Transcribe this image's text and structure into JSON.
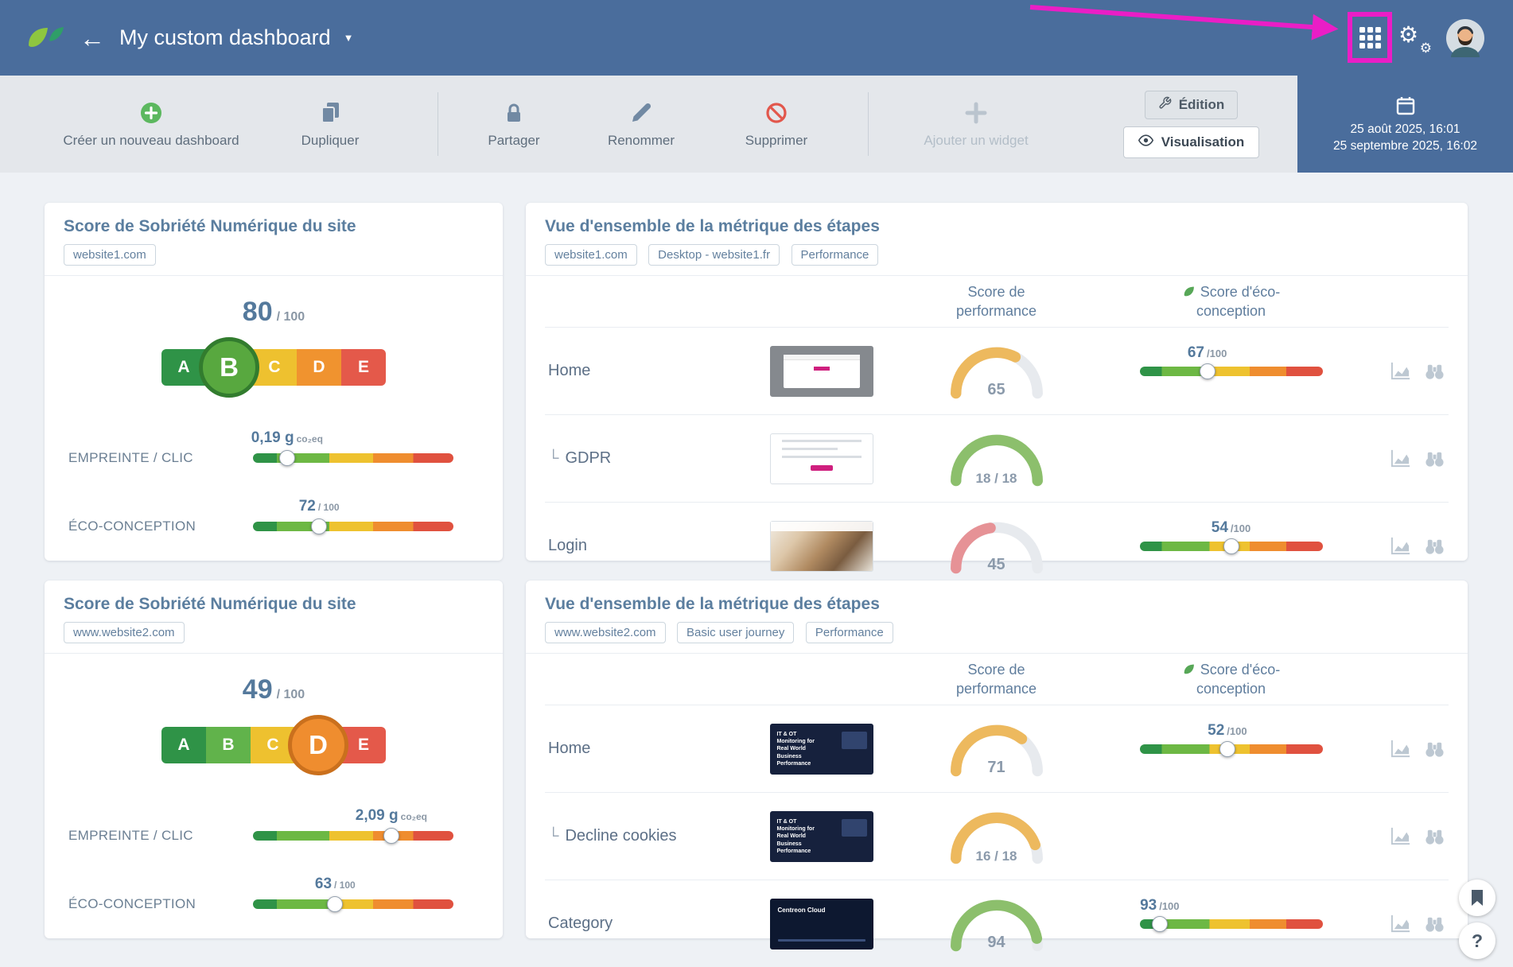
{
  "icons": {
    "back": "←",
    "caret": "▼",
    "gear_large": "⚙",
    "gear_small": "⚙"
  },
  "header": {
    "title": "My custom dashboard"
  },
  "toolbar": {
    "create": "Créer un nouveau dashboard",
    "duplicate": "Dupliquer",
    "share": "Partager",
    "rename": "Renommer",
    "delete": "Supprimer",
    "add_widget": "Ajouter un widget",
    "edition": "Édition",
    "visualisation": "Visualisation",
    "date_start": "25 août 2025, 16:01",
    "date_end": "25 septembre 2025, 16:02"
  },
  "grade_letters": [
    "A",
    "B",
    "C",
    "D",
    "E"
  ],
  "sobriety1": {
    "title": "Score de Sobriété Numérique du site",
    "tag": "website1.com",
    "score": "80",
    "score_suffix": "/ 100",
    "active_grade": "B",
    "metrics": [
      {
        "label": "EMPREINTE / CLIC",
        "value": "0,19 g",
        "unit": "co₂eq",
        "knob_pct": 17
      },
      {
        "label": "ÉCO-CONCEPTION",
        "value": "72",
        "unit": "/ 100",
        "knob_pct": 33
      }
    ]
  },
  "metrics1": {
    "title": "Vue d'ensemble de la métrique des étapes",
    "tags": [
      "website1.com",
      "Desktop - website1.fr",
      "Performance"
    ],
    "col_perf_l1": "Score de",
    "col_perf_l2": "performance",
    "col_eco_l1": "Score d'éco-",
    "col_eco_l2": "conception",
    "rows": [
      {
        "prefix": "",
        "label": "Home",
        "gauge": {
          "value": "65",
          "frac": 0.65,
          "color": "#edb95e"
        },
        "eco_score": "67",
        "eco_max": "/100",
        "eco_knob_pct": 37
      },
      {
        "prefix": "└",
        "label": "GDPR",
        "gauge": {
          "value": "18 / 18",
          "frac": 1,
          "color": "#8cbf6c"
        }
      },
      {
        "prefix": "",
        "label": "Login",
        "gauge": {
          "value": "45",
          "frac": 0.45,
          "color": "#e69296"
        },
        "eco_score": "54",
        "eco_max": "/100",
        "eco_knob_pct": 50
      }
    ]
  },
  "sobriety2": {
    "title": "Score de Sobriété Numérique du site",
    "tag": "www.website2.com",
    "score": "49",
    "score_suffix": "/ 100",
    "active_grade": "D",
    "metrics": [
      {
        "label": "EMPREINTE / CLIC",
        "value": "2,09 g",
        "unit": "co₂eq",
        "knob_pct": 69
      },
      {
        "label": "ÉCO-CONCEPTION",
        "value": "63",
        "unit": "/ 100",
        "knob_pct": 41
      }
    ]
  },
  "metrics2": {
    "title": "Vue d'ensemble de la métrique des étapes",
    "tags": [
      "www.website2.com",
      "Basic user journey",
      "Performance"
    ],
    "col_perf_l1": "Score de",
    "col_perf_l2": "performance",
    "col_eco_l1": "Score d'éco-",
    "col_eco_l2": "conception",
    "rows": [
      {
        "prefix": "",
        "label": "Home",
        "thumb_text": "IT & OT Monitoring for Real World Business Performance",
        "gauge": {
          "value": "71",
          "frac": 0.71,
          "color": "#edb95e"
        },
        "eco_score": "52",
        "eco_max": "/100",
        "eco_knob_pct": 48
      },
      {
        "prefix": "└",
        "label": "Decline cookies",
        "thumb_text": "IT & OT Monitoring for Real World Business Performance",
        "gauge": {
          "value": "16 / 18",
          "frac": 0.89,
          "color": "#edb95e"
        }
      },
      {
        "prefix": "",
        "label": "Category",
        "thumb_text": "Centreon Cloud",
        "gauge": {
          "value": "94",
          "frac": 0.94,
          "color": "#8cbf6c"
        },
        "eco_score": "93",
        "eco_max": "/100",
        "eco_knob_pct": 11
      }
    ]
  },
  "floating": {
    "help": "?"
  }
}
